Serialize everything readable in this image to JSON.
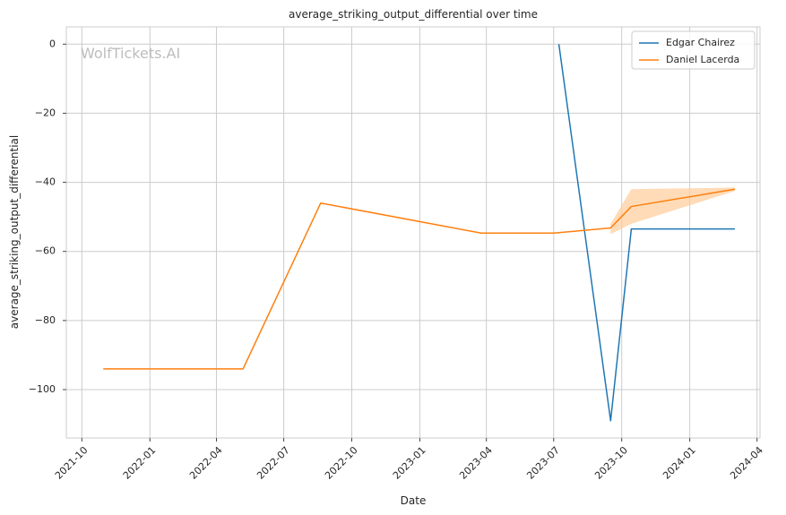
{
  "chart_data": {
    "type": "line",
    "title": "average_striking_output_differential over time",
    "xlabel": "Date",
    "ylabel": "average_striking_output_differential",
    "watermark": "WolfTickets.AI",
    "x_ticks": [
      "2021-10",
      "2022-01",
      "2022-04",
      "2022-07",
      "2022-10",
      "2023-01",
      "2023-04",
      "2023-07",
      "2023-10",
      "2024-01",
      "2024-04"
    ],
    "y_ticks": [
      0,
      -20,
      -40,
      -60,
      -80,
      -100
    ],
    "xlim": [
      "2021-09-10",
      "2024-04-05"
    ],
    "ylim": [
      -114,
      5
    ],
    "grid": true,
    "legend_position": "top-right",
    "series": [
      {
        "name": "Edgar Chairez",
        "color": "#1f77b4",
        "points": [
          {
            "x": "2023-07-08",
            "y": 0
          },
          {
            "x": "2023-09-16",
            "y": -109
          },
          {
            "x": "2023-10-14",
            "y": -53.5
          },
          {
            "x": "2024-03-02",
            "y": -53.5
          }
        ]
      },
      {
        "name": "Daniel Lacerda",
        "color": "#ff7f0e",
        "band_color": "#ffcc99",
        "points": [
          {
            "x": "2021-10-30",
            "y": -94
          },
          {
            "x": "2022-05-07",
            "y": -94
          },
          {
            "x": "2022-08-20",
            "y": -46
          },
          {
            "x": "2023-03-25",
            "y": -54.7
          },
          {
            "x": "2023-07-01",
            "y": -54.7
          },
          {
            "x": "2023-09-16",
            "y": -53.2,
            "lo": -55,
            "hi": -52
          },
          {
            "x": "2023-10-14",
            "y": -47,
            "lo": -52,
            "hi": -42
          },
          {
            "x": "2024-03-02",
            "y": -42,
            "lo": -42.5,
            "hi": -41.5
          }
        ]
      }
    ]
  }
}
